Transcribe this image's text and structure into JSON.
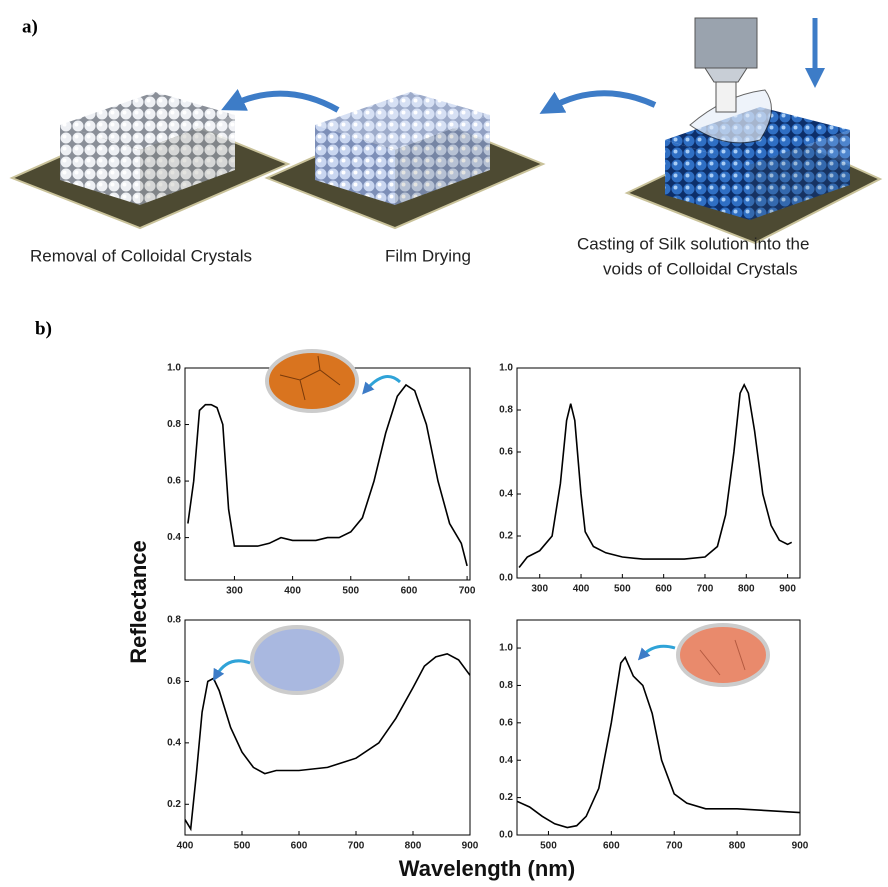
{
  "panel_a": {
    "label": "a)",
    "steps": [
      {
        "lines": [
          "Removal of Colloidal Crystals"
        ]
      },
      {
        "lines": [
          "Film Drying"
        ]
      },
      {
        "lines": [
          "Casting of Silk solution into the",
          "voids of Colloidal Crystals"
        ]
      }
    ]
  },
  "panel_b": {
    "label": "b)",
    "ylabel": "Reflectance",
    "xlabel": "Wavelength (nm)"
  },
  "chart_data": [
    {
      "type": "line",
      "color": "#000000",
      "x": [
        220,
        230,
        240,
        250,
        260,
        270,
        280,
        290,
        300,
        320,
        340,
        360,
        380,
        400,
        420,
        440,
        460,
        480,
        500,
        520,
        540,
        560,
        580,
        595,
        610,
        630,
        650,
        670,
        690,
        700
      ],
      "values": [
        0.45,
        0.6,
        0.85,
        0.87,
        0.87,
        0.86,
        0.8,
        0.5,
        0.37,
        0.37,
        0.37,
        0.38,
        0.4,
        0.39,
        0.39,
        0.39,
        0.4,
        0.4,
        0.42,
        0.47,
        0.6,
        0.77,
        0.9,
        0.94,
        0.92,
        0.8,
        0.6,
        0.45,
        0.38,
        0.3
      ],
      "xlim": [
        215,
        705
      ],
      "ylim": [
        0.25,
        1.0
      ],
      "xticks": [
        300,
        400,
        500,
        600,
        700
      ],
      "yticks": [
        0.4,
        0.6,
        0.8,
        {
          "value": 1.0,
          "label": "1.0"
        }
      ]
    },
    {
      "type": "line",
      "color": "#000000",
      "x": [
        250,
        270,
        300,
        330,
        350,
        365,
        375,
        385,
        400,
        410,
        430,
        460,
        500,
        550,
        600,
        650,
        700,
        730,
        750,
        770,
        785,
        795,
        805,
        820,
        840,
        860,
        880,
        900,
        910
      ],
      "values": [
        0.05,
        0.1,
        0.13,
        0.2,
        0.45,
        0.75,
        0.83,
        0.75,
        0.4,
        0.22,
        0.15,
        0.12,
        0.1,
        0.09,
        0.09,
        0.09,
        0.1,
        0.15,
        0.3,
        0.6,
        0.88,
        0.92,
        0.88,
        0.7,
        0.4,
        0.25,
        0.18,
        0.16,
        0.17
      ],
      "xlim": [
        245,
        930
      ],
      "ylim": [
        0,
        1.0
      ],
      "xticks": [
        300,
        400,
        500,
        600,
        700,
        800,
        900
      ],
      "yticks": [
        {
          "value": 0,
          "label": "0.0"
        },
        0.2,
        0.4,
        0.6,
        0.8,
        {
          "value": 1.0,
          "label": "1.0"
        }
      ]
    },
    {
      "type": "line",
      "color": "#000000",
      "x": [
        400,
        410,
        420,
        430,
        440,
        450,
        460,
        480,
        500,
        520,
        540,
        560,
        600,
        650,
        700,
        740,
        770,
        800,
        820,
        840,
        860,
        880,
        900
      ],
      "values": [
        0.15,
        0.12,
        0.3,
        0.5,
        0.6,
        0.61,
        0.57,
        0.45,
        0.37,
        0.32,
        0.3,
        0.31,
        0.31,
        0.32,
        0.35,
        0.4,
        0.48,
        0.58,
        0.65,
        0.68,
        0.69,
        0.67,
        0.62
      ],
      "xlim": [
        400,
        900
      ],
      "ylim": [
        0.1,
        0.8
      ],
      "xticks": [
        400,
        500,
        600,
        700,
        800,
        900
      ],
      "yticks": [
        0.2,
        0.4,
        0.6,
        0.8
      ]
    },
    {
      "type": "line",
      "color": "#000000",
      "x": [
        450,
        470,
        490,
        510,
        530,
        545,
        560,
        580,
        600,
        615,
        622,
        635,
        650,
        665,
        680,
        700,
        720,
        750,
        800,
        850,
        900
      ],
      "values": [
        0.18,
        0.15,
        0.1,
        0.06,
        0.04,
        0.05,
        0.1,
        0.25,
        0.6,
        0.92,
        0.95,
        0.85,
        0.8,
        0.65,
        0.4,
        0.22,
        0.17,
        0.14,
        0.14,
        0.13,
        0.12
      ],
      "xlim": [
        450,
        900
      ],
      "ylim": [
        0,
        1.15
      ],
      "xticks": [
        500,
        600,
        700,
        800,
        900
      ],
      "yticks": [
        {
          "value": 0,
          "label": "0.0"
        },
        0.2,
        0.4,
        0.6,
        0.8,
        {
          "value": 1.0,
          "label": "1.0"
        }
      ]
    }
  ]
}
